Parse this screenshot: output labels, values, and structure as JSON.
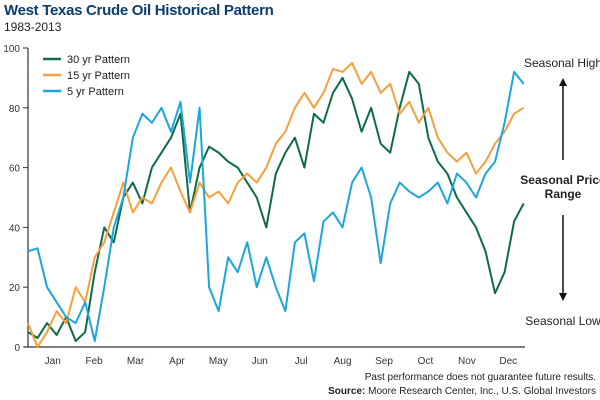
{
  "chart_data": {
    "type": "line",
    "title": "West Texas Crude Oil Historical Pattern",
    "subtitle": "1983-2013",
    "xlabel": "",
    "ylabel": "",
    "ylim": [
      0,
      100
    ],
    "yticks": [
      "0",
      "20",
      "40",
      "60",
      "80",
      "100"
    ],
    "xticks": [
      "Jan",
      "Feb",
      "Mar",
      "Apr",
      "May",
      "Jun",
      "Jul",
      "Aug",
      "Sep",
      "Oct",
      "Nov",
      "Dec"
    ],
    "x": [
      0,
      7,
      14,
      21,
      28,
      35,
      42,
      49,
      56,
      63,
      70,
      77,
      84,
      91,
      98,
      105,
      112,
      119,
      126,
      133,
      140,
      147,
      154,
      161,
      168,
      175,
      182,
      189,
      196,
      203,
      210,
      217,
      224,
      231,
      238,
      245,
      252,
      259,
      266,
      273,
      280,
      287,
      294,
      301,
      308,
      315,
      322,
      329,
      336,
      343,
      350,
      357,
      364
    ],
    "xlim": [
      0,
      365
    ],
    "grid": false,
    "legend_position": "top-left",
    "series": [
      {
        "name": "30 yr Pattern",
        "color": "#0e6b4a",
        "values": [
          5,
          3,
          8,
          4,
          10,
          2,
          5,
          25,
          40,
          35,
          50,
          55,
          48,
          60,
          65,
          70,
          78,
          45,
          60,
          67,
          65,
          62,
          60,
          55,
          50,
          40,
          58,
          65,
          70,
          60,
          78,
          75,
          85,
          90,
          83,
          72,
          80,
          68,
          65,
          80,
          92,
          88,
          70,
          62,
          58,
          50,
          45,
          40,
          32,
          18,
          25,
          42,
          48
        ]
      },
      {
        "name": "15 yr Pattern",
        "color": "#f5a03c",
        "values": [
          8,
          0,
          5,
          12,
          8,
          20,
          15,
          30,
          35,
          45,
          55,
          45,
          50,
          48,
          55,
          60,
          52,
          45,
          55,
          50,
          52,
          48,
          55,
          58,
          55,
          60,
          68,
          72,
          80,
          85,
          80,
          85,
          93,
          92,
          95,
          88,
          92,
          85,
          88,
          78,
          82,
          75,
          80,
          70,
          65,
          62,
          65,
          58,
          62,
          68,
          72,
          78,
          80
        ]
      },
      {
        "name": "5 yr Pattern",
        "color": "#1ca6dc",
        "values": [
          32,
          33,
          20,
          15,
          10,
          8,
          15,
          2,
          20,
          40,
          50,
          70,
          78,
          75,
          80,
          72,
          82,
          55,
          80,
          20,
          12,
          30,
          25,
          35,
          20,
          30,
          20,
          12,
          35,
          38,
          22,
          42,
          45,
          40,
          55,
          60,
          50,
          28,
          48,
          55,
          52,
          50,
          52,
          55,
          48,
          58,
          55,
          50,
          58,
          62,
          75,
          92,
          88
        ]
      }
    ],
    "annotations": {
      "high": "Seasonal High",
      "range": "Seasonal Price Range",
      "low": "Seasonal Low"
    }
  },
  "footer": {
    "disclaimer": "Past performance does not guarantee future results.",
    "source_label": "Source:",
    "source_text": " Moore Research Center, Inc., U.S. Global Investors"
  }
}
